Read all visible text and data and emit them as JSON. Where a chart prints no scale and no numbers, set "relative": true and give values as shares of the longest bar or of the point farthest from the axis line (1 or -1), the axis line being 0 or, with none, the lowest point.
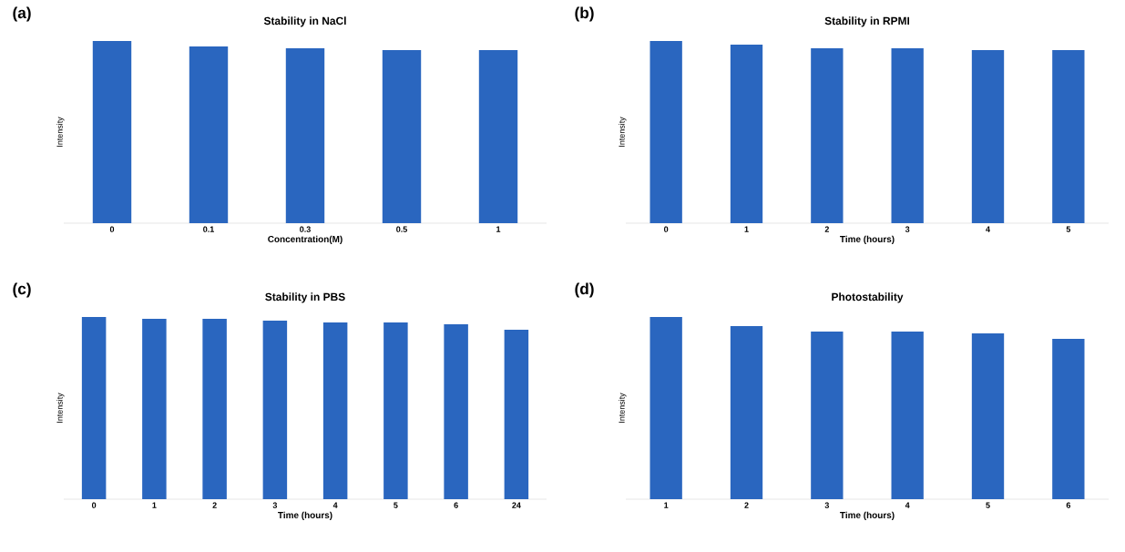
{
  "chart_data": [
    {
      "type": "bar",
      "title": "Stability in NaCl",
      "xlabel": "Concentration(M)",
      "ylabel": "Intensity",
      "annotations": [
        "(a)"
      ],
      "relative": true,
      "color": "#2a66bf",
      "categories": [
        "0",
        "0.1",
        "0.3",
        "0.5",
        "1"
      ],
      "values": [
        1,
        0.97,
        0.96,
        0.95,
        0.95
      ]
    },
    {
      "type": "bar",
      "title": "Stability in RPMI",
      "xlabel": "Time (hours)",
      "ylabel": "Intensity",
      "annotations": [
        "(b)"
      ],
      "relative": true,
      "color": "#2a66bf",
      "categories": [
        "0",
        "1",
        "2",
        "3",
        "4",
        "5"
      ],
      "values": [
        1,
        0.98,
        0.96,
        0.96,
        0.95,
        0.95
      ]
    },
    {
      "type": "bar",
      "title": "Stability in PBS",
      "xlabel": "Time (hours)",
      "ylabel": "Intensity",
      "annotations": [
        "(c)"
      ],
      "relative": true,
      "color": "#2a66bf",
      "categories": [
        "0",
        "1",
        "2",
        "3",
        "4",
        "5",
        "6",
        "24"
      ],
      "values": [
        1,
        0.99,
        0.99,
        0.98,
        0.97,
        0.97,
        0.96,
        0.93
      ]
    },
    {
      "type": "bar",
      "title": "Photostability",
      "xlabel": "Time (hours)",
      "ylabel": "Intensity",
      "annotations": [
        "(d)"
      ],
      "relative": true,
      "color": "#2a66bf",
      "categories": [
        "1",
        "2",
        "3",
        "4",
        "5",
        "6"
      ],
      "values": [
        1,
        0.95,
        0.92,
        0.92,
        0.91,
        0.88
      ]
    }
  ]
}
